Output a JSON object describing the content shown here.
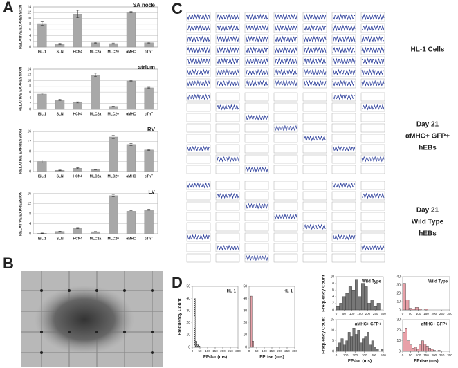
{
  "panel_labels": [
    "A",
    "B",
    "C",
    "D"
  ],
  "panel_c": {
    "labels": [
      [
        "HL-1 Cells"
      ],
      [
        "Day 21",
        "αMHC+ GFP+",
        "hEBs"
      ],
      [
        "Day 21",
        "Wild Type",
        "hEBs"
      ]
    ]
  },
  "chart_data": [
    {
      "type": "bar",
      "title": "SA node",
      "y_label": "RELATIVE EXPRESSION",
      "color": "#a8a8a8",
      "categories": [
        "ISL-1",
        "SLN",
        "HCN4",
        "MLC2a",
        "MLC2v",
        "αMHC",
        "cTnT"
      ],
      "values": [
        8.2,
        1.1,
        11.5,
        1.5,
        1.2,
        12.2,
        1.5
      ],
      "errors": [
        0.6,
        0.2,
        1.3,
        0.2,
        0.2,
        0.2,
        0.2
      ],
      "ylim": [
        0,
        14
      ],
      "yticks": [
        0,
        2,
        4,
        6,
        8,
        10,
        12,
        14
      ],
      "grid": true
    },
    {
      "type": "bar",
      "title": "atrium",
      "y_label": "RELATIVE EXPRESSION",
      "color": "#a8a8a8",
      "categories": [
        "ISL-1",
        "SLN",
        "HCN4",
        "MLC2a",
        "MLC2v",
        "αMHC",
        "cTnT"
      ],
      "values": [
        5.3,
        3.3,
        2.4,
        12.0,
        1.0,
        9.9,
        7.5
      ],
      "errors": [
        0.3,
        0.2,
        0.2,
        0.6,
        0.1,
        0.2,
        0.2
      ],
      "ylim": [
        0,
        14
      ],
      "yticks": [
        0,
        2,
        4,
        6,
        8,
        10,
        12,
        14
      ],
      "grid": true
    },
    {
      "type": "bar",
      "title": "RV",
      "y_label": "RELATIVE EXPRESSION",
      "color": "#a8a8a8",
      "categories": [
        "ISL-1",
        "SLN",
        "HCN4",
        "MLC2a",
        "MLC2v",
        "αMHC",
        "cTnT"
      ],
      "values": [
        4.0,
        0.5,
        1.3,
        0.8,
        13.8,
        10.8,
        8.6
      ],
      "errors": [
        0.6,
        0.1,
        0.2,
        0.1,
        0.6,
        0.4,
        0.2
      ],
      "ylim": [
        0,
        16
      ],
      "yticks": [
        0,
        4,
        8,
        12,
        16
      ],
      "grid": true
    },
    {
      "type": "bar",
      "title": "LV",
      "y_label": "RELATIVE EXPRESSION",
      "color": "#a8a8a8",
      "categories": [
        "ISL-1",
        "SLN",
        "HCN4",
        "MLC2a",
        "MLC2v",
        "αMHC",
        "cTnT"
      ],
      "values": [
        0.2,
        0.9,
        2.3,
        0.8,
        15.2,
        9.0,
        9.6
      ],
      "errors": [
        0.1,
        0.1,
        0.2,
        0.1,
        0.5,
        0.3,
        0.2
      ],
      "ylim": [
        0,
        16
      ],
      "yticks": [
        0,
        4,
        8,
        12,
        16
      ],
      "grid": true
    },
    {
      "type": "histogram",
      "annotation": "HL-1",
      "x_label": "FPdur (ms)",
      "y_label": "Frequency Count",
      "color": "#555555",
      "bins": [
        0,
        10,
        20,
        30,
        40,
        50,
        60
      ],
      "counts": [
        0,
        40,
        5,
        2,
        1,
        0
      ],
      "xlim": [
        0,
        300
      ],
      "xticks": [
        0,
        50,
        100,
        150,
        200,
        250,
        300
      ],
      "ylim": [
        0,
        50
      ],
      "yticks": [
        0,
        10,
        20,
        30,
        40,
        50
      ]
    },
    {
      "type": "histogram",
      "annotation": "HL-1",
      "x_label": "FPrise (ms)",
      "color": "#e8a0a8",
      "bins": [
        0,
        10,
        20,
        30,
        40,
        50,
        60
      ],
      "counts": [
        0,
        42,
        5,
        0,
        0,
        0
      ],
      "xlim": [
        0,
        300
      ],
      "xticks": [
        0,
        50,
        100,
        150,
        200,
        250,
        300
      ],
      "ylim": [
        0,
        50
      ],
      "yticks": [
        0,
        10,
        20,
        30,
        40,
        50
      ]
    },
    {
      "type": "histogram",
      "annotation": "Wild Type",
      "y_label": "Frequency Count",
      "color": "#777777",
      "bins": [
        0,
        20,
        40,
        60,
        80,
        100,
        120,
        140,
        160,
        180,
        200,
        220,
        240,
        260,
        280,
        300
      ],
      "counts": [
        1,
        2,
        4,
        5,
        7,
        6,
        9,
        4,
        8,
        7,
        2,
        3,
        1,
        2,
        0
      ],
      "xlim": [
        0,
        300
      ],
      "xticks": [
        0,
        50,
        100,
        150,
        200,
        250,
        300
      ],
      "ylim": [
        0,
        10
      ],
      "yticks": [
        0,
        2,
        4,
        6,
        8,
        10
      ]
    },
    {
      "type": "histogram",
      "annotation": "Wild Type",
      "color": "#e8a0a8",
      "bins": [
        0,
        20,
        40,
        60,
        80,
        100,
        120,
        140,
        160,
        180,
        200,
        220,
        240,
        260,
        280,
        300
      ],
      "counts": [
        32,
        12,
        2,
        1,
        3,
        1,
        0,
        1,
        0,
        0,
        0,
        0,
        0,
        0,
        0
      ],
      "xlim": [
        0,
        300
      ],
      "xticks": [
        0,
        50,
        100,
        150,
        200,
        250,
        300
      ],
      "ylim": [
        0,
        40
      ],
      "yticks": [
        0,
        10,
        20,
        30,
        40
      ]
    },
    {
      "type": "histogram",
      "annotation": "αMHC+ GFP+",
      "x_label": "FPdur (ms)",
      "y_label": "Frequency Count",
      "color": "#777777",
      "bins": [
        0,
        25,
        50,
        75,
        100,
        125,
        150,
        175,
        200,
        225,
        250,
        275,
        300,
        325,
        350,
        375,
        400,
        425,
        450,
        475,
        500
      ],
      "counts": [
        2,
        4,
        6,
        3,
        5,
        9,
        7,
        11,
        8,
        10,
        4,
        6,
        7,
        9,
        3,
        5,
        2,
        1,
        0,
        1
      ],
      "xlim": [
        0,
        500
      ],
      "xticks": [
        0,
        100,
        200,
        300,
        400,
        500
      ],
      "ylim": [
        0,
        15
      ],
      "yticks": [
        0,
        5,
        10,
        15
      ]
    },
    {
      "type": "histogram",
      "annotation": "αMHC+ GFP+",
      "x_label": "FPrise (ms)",
      "color": "#e8a0a8",
      "bins": [
        0,
        15,
        30,
        45,
        60,
        75,
        90,
        105,
        120,
        135,
        150,
        165,
        180,
        195,
        210,
        225,
        240,
        255,
        270,
        285,
        300
      ],
      "counts": [
        18,
        22,
        10,
        6,
        3,
        4,
        2,
        6,
        10,
        7,
        5,
        3,
        2,
        1,
        0,
        1,
        0,
        0,
        0,
        0
      ],
      "xlim": [
        0,
        300
      ],
      "xticks": [
        0,
        50,
        100,
        150,
        200,
        250,
        300
      ],
      "ylim": [
        0,
        30
      ],
      "yticks": [
        0,
        10,
        20,
        30
      ]
    }
  ]
}
